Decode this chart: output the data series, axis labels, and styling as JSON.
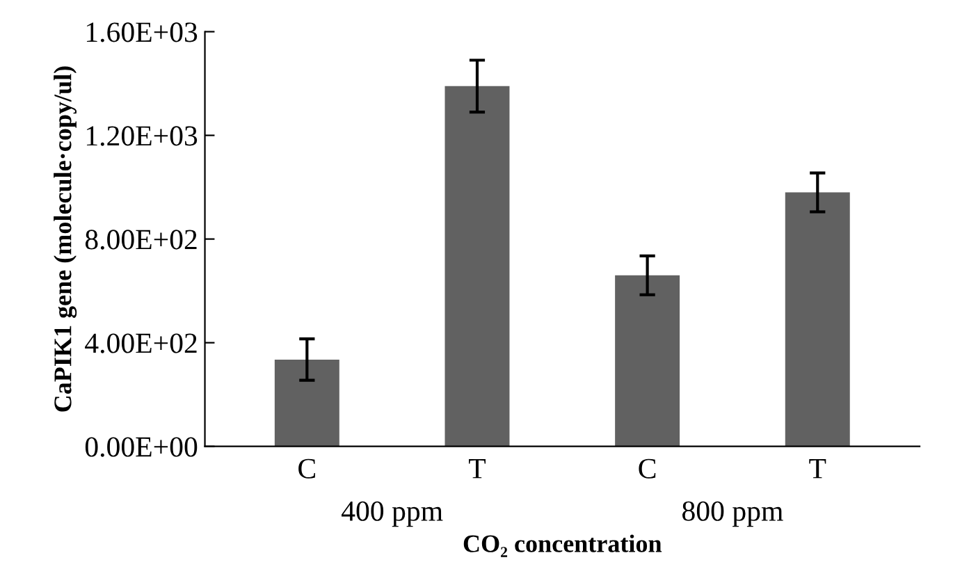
{
  "chart_data": {
    "type": "bar",
    "categories": [
      "C",
      "T",
      "C",
      "T"
    ],
    "values": [
      335,
      1390,
      660,
      980
    ],
    "errors": [
      80,
      100,
      75,
      75
    ],
    "color": "#616161",
    "xlabel": "CO₂ concentration",
    "ylabel": "CaPIK1 gene (molecule·copy/ul)",
    "ylim": [
      0,
      1600
    ],
    "yticks": [
      {
        "value": 0,
        "label": "0.00E+00"
      },
      {
        "value": 400,
        "label": "4.00E+02"
      },
      {
        "value": 800,
        "label": "8.00E+02"
      },
      {
        "value": 1200,
        "label": "1.20E+03"
      },
      {
        "value": 1600,
        "label": "1.60E+03"
      }
    ],
    "annotations": [
      "400 ppm",
      "800 ppm"
    ],
    "grid": false,
    "legend": false
  }
}
